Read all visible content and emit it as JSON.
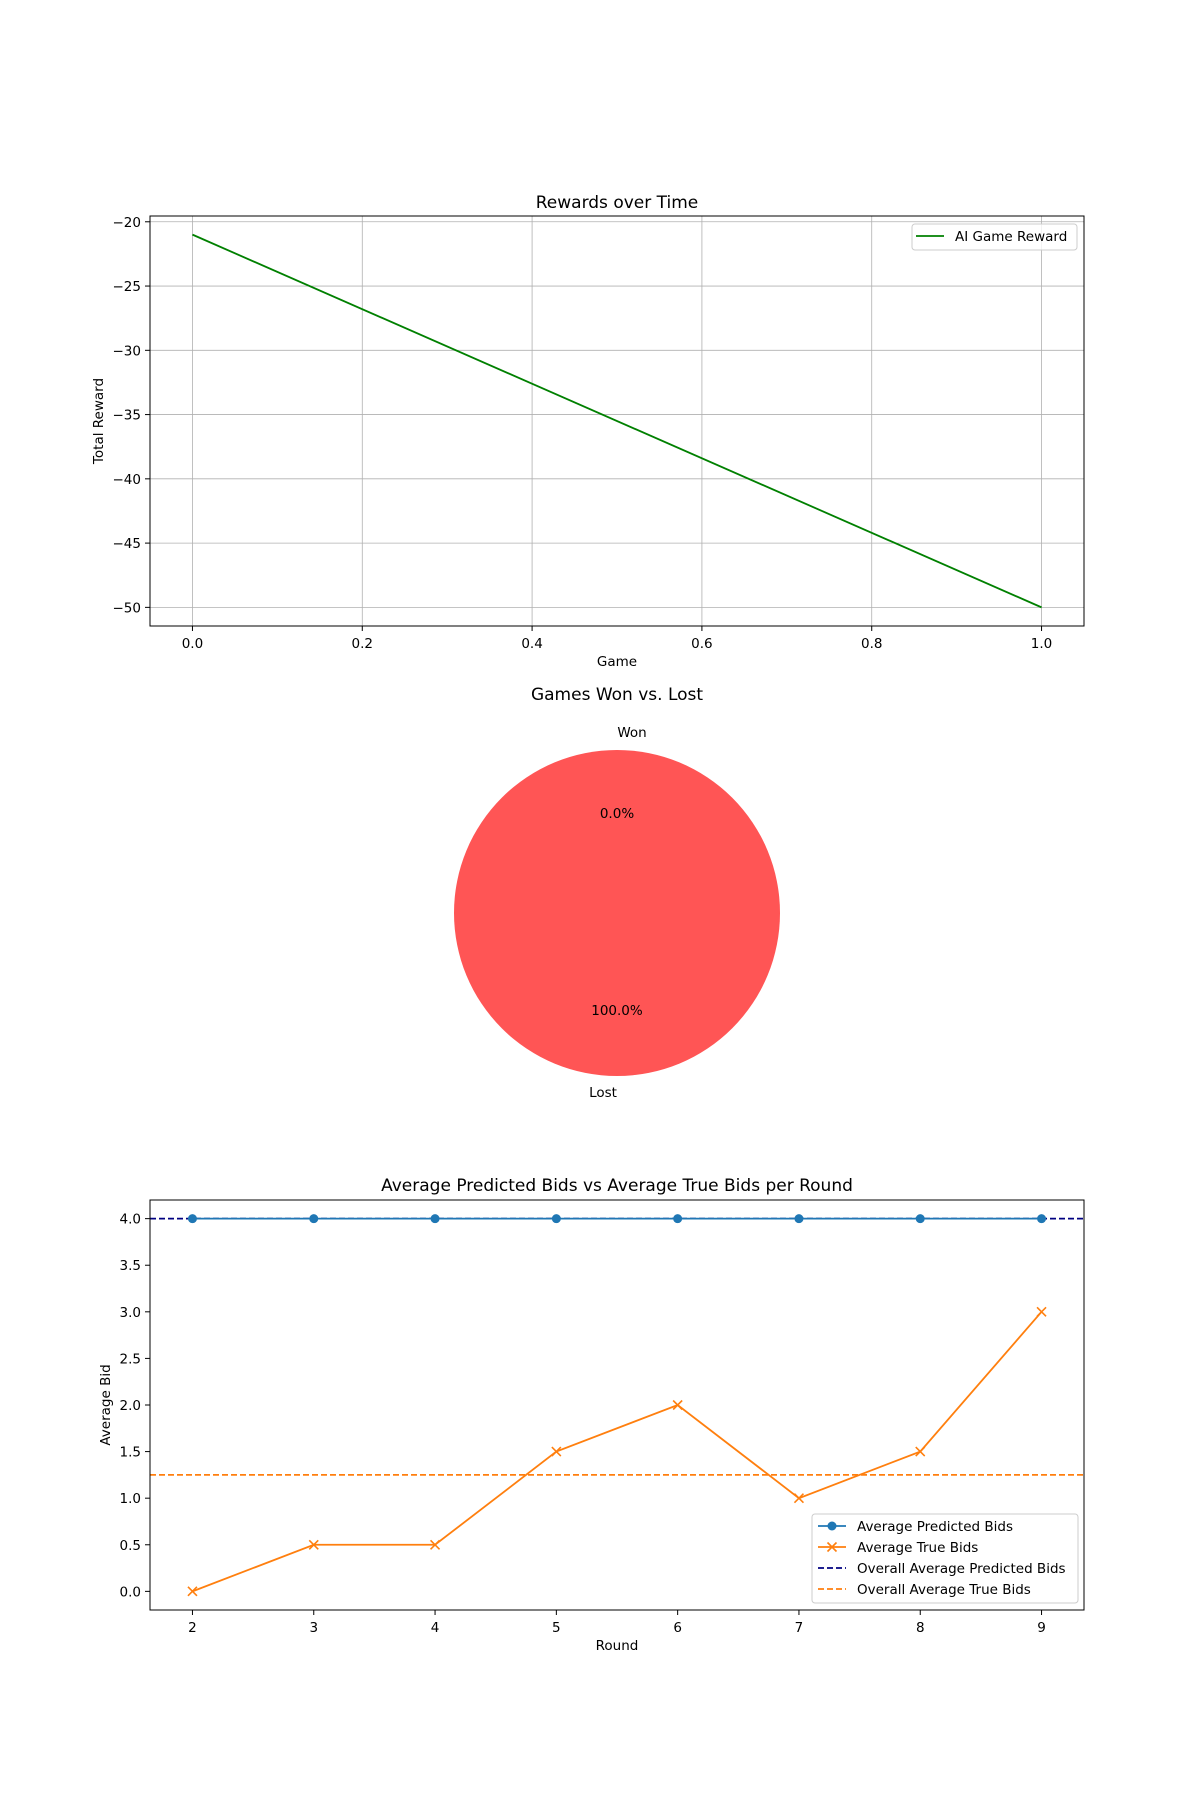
{
  "figure": {
    "background": "#ffffff"
  },
  "chart_data": [
    {
      "type": "line",
      "title": "Rewards over Time",
      "xlabel": "Game",
      "ylabel": "Total Reward",
      "xlim": [
        -0.05,
        1.05
      ],
      "ylim": [
        -51.45,
        -19.55
      ],
      "xticks": [
        0.0,
        0.2,
        0.4,
        0.6,
        0.8,
        1.0
      ],
      "xtick_labels": [
        "0.0",
        "0.2",
        "0.4",
        "0.6",
        "0.8",
        "1.0"
      ],
      "yticks": [
        -50,
        -45,
        -40,
        -35,
        -30,
        -25,
        -20
      ],
      "ytick_labels": [
        "−50",
        "−45",
        "−40",
        "−35",
        "−30",
        "−25",
        "−20"
      ],
      "grid": true,
      "legend_position": "top-right",
      "series": [
        {
          "name": "AI Game Reward",
          "x": [
            0,
            1
          ],
          "y": [
            -21,
            -50
          ],
          "color": "#008000",
          "style": "solid",
          "marker": "none"
        }
      ]
    },
    {
      "type": "pie",
      "title": "Games Won vs. Lost",
      "slices": [
        {
          "label": "Won",
          "value": 0,
          "pct_label": "0.0%",
          "color": "#66b3ff"
        },
        {
          "label": "Lost",
          "value": 100,
          "pct_label": "100.0%",
          "color": "#ff5555"
        }
      ]
    },
    {
      "type": "line",
      "title": "Average Predicted Bids vs Average True Bids per Round",
      "xlabel": "Round",
      "ylabel": "Average Bid",
      "xlim": [
        1.65,
        9.35
      ],
      "ylim": [
        -0.2,
        4.2
      ],
      "xticks": [
        2,
        3,
        4,
        5,
        6,
        7,
        8,
        9
      ],
      "xtick_labels": [
        "2",
        "3",
        "4",
        "5",
        "6",
        "7",
        "8",
        "9"
      ],
      "yticks": [
        0.0,
        0.5,
        1.0,
        1.5,
        2.0,
        2.5,
        3.0,
        3.5,
        4.0
      ],
      "ytick_labels": [
        "0.0",
        "0.5",
        "1.0",
        "1.5",
        "2.0",
        "2.5",
        "3.0",
        "3.5",
        "4.0"
      ],
      "grid": false,
      "legend_position": "bottom-right",
      "series": [
        {
          "name": "Average Predicted Bids",
          "x": [
            2,
            3,
            4,
            5,
            6,
            7,
            8,
            9
          ],
          "y": [
            4,
            4,
            4,
            4,
            4,
            4,
            4,
            4
          ],
          "color": "#1f77b4",
          "style": "solid",
          "marker": "circle"
        },
        {
          "name": "Average True Bids",
          "x": [
            2,
            3,
            4,
            5,
            6,
            7,
            8,
            9
          ],
          "y": [
            0,
            0.5,
            0.5,
            1.5,
            2,
            1,
            1.5,
            3
          ],
          "color": "#ff7f0e",
          "style": "solid",
          "marker": "x"
        }
      ],
      "hlines": [
        {
          "name": "Overall Average Predicted Bids",
          "y": 4.0,
          "color": "#000080",
          "style": "dashed"
        },
        {
          "name": "Overall Average True Bids",
          "y": 1.25,
          "color": "#ff7f0e",
          "style": "dashed"
        }
      ]
    }
  ]
}
